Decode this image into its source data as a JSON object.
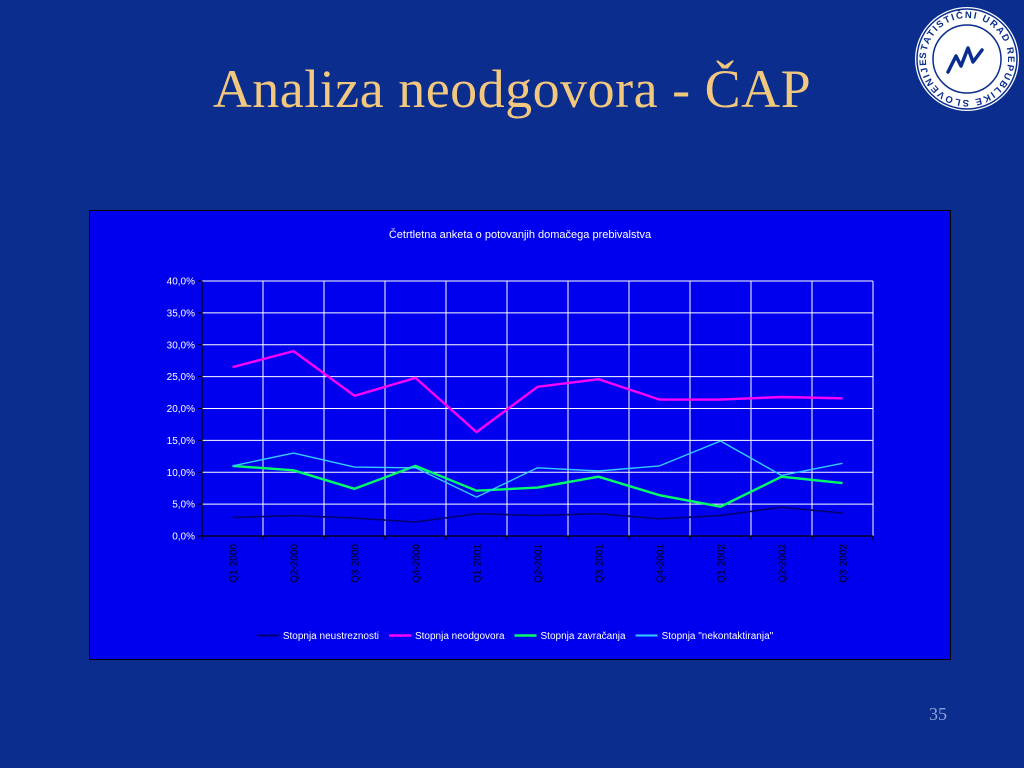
{
  "slide": {
    "title": "Analiza neodgovora - ČAP",
    "page_number": "35",
    "logo_text": "STATISTIČNI URAD REPUBLIKE SLOVENIJE"
  },
  "colors": {
    "background": "#0a2d8e",
    "title": "#f2c77e",
    "plot_area": "#0000ee",
    "neustreznosti": "#000070",
    "neodgovora": "#ff00ff",
    "zavracanja": "#00ff66",
    "nekontaktiranja": "#33ccff"
  },
  "chart_data": {
    "type": "line",
    "title": "Četrtletna anketa o potovanjih domačega prebivalstva",
    "categories": [
      "Q1-2000",
      "Q2-2000",
      "Q3-2000",
      "Q4-2000",
      "Q1-2001",
      "Q2-2001",
      "Q3-2001",
      "Q4-2001",
      "Q1-2002",
      "Q2-2002",
      "Q3-2002"
    ],
    "y_ticks": [
      "0,0%",
      "5,0%",
      "10,0%",
      "15,0%",
      "20,0%",
      "25,0%",
      "30,0%",
      "35,0%",
      "40,0%"
    ],
    "ylim": [
      0,
      40
    ],
    "grid": true,
    "legend_position": "bottom",
    "series": [
      {
        "name": "Stopnja neustreznosti",
        "color": "#000070",
        "width": 1.6,
        "values": [
          2.9,
          3.2,
          2.8,
          2.2,
          3.5,
          3.2,
          3.5,
          2.7,
          3.2,
          4.5,
          3.6
        ]
      },
      {
        "name": "Stopnja neodgovora",
        "color": "#ff00ff",
        "width": 2.4,
        "values": [
          26.5,
          29.0,
          22.0,
          24.8,
          16.3,
          23.4,
          24.6,
          21.4,
          21.4,
          21.8,
          21.6
        ]
      },
      {
        "name": "Stopnja zavračanja",
        "color": "#00ff66",
        "width": 2.4,
        "values": [
          11.0,
          10.3,
          7.4,
          11.0,
          7.1,
          7.6,
          9.3,
          6.4,
          4.6,
          9.3,
          8.3
        ]
      },
      {
        "name": "Stopnja \"nekontaktiranja\"",
        "color": "#33ccff",
        "width": 1.4,
        "values": [
          11.0,
          13.0,
          10.8,
          10.7,
          6.1,
          10.7,
          10.2,
          11.0,
          14.9,
          9.5,
          11.4
        ]
      }
    ]
  }
}
